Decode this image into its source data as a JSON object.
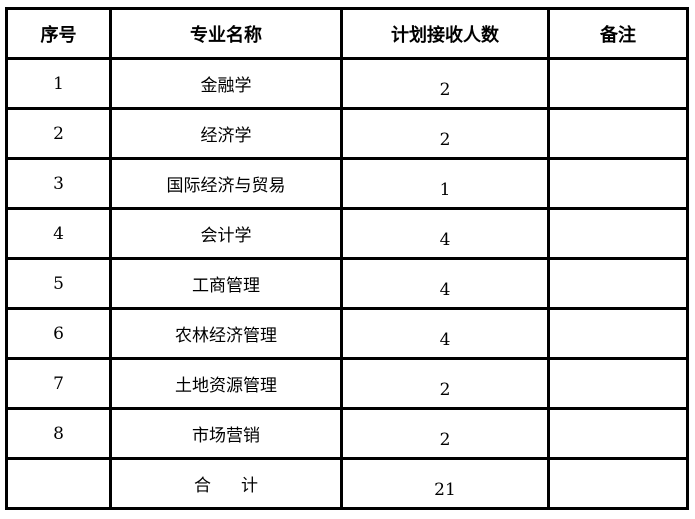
{
  "headers": [
    "序号",
    "专业名称",
    "计划接收人数",
    "备注"
  ],
  "rows": [
    {
      "no": "1",
      "major": "金融学",
      "plan": "2",
      "note": ""
    },
    {
      "no": "2",
      "major": "经济学",
      "plan": "2",
      "note": ""
    },
    {
      "no": "3",
      "major": "国际经济与贸易",
      "plan": "1",
      "note": ""
    },
    {
      "no": "4",
      "major": "会计学",
      "plan": "4",
      "note": ""
    },
    {
      "no": "5",
      "major": "工商管理",
      "plan": "4",
      "note": ""
    },
    {
      "no": "6",
      "major": "农林经济管理",
      "plan": "4",
      "note": ""
    },
    {
      "no": "7",
      "major": "土地资源管理",
      "plan": "2",
      "note": ""
    },
    {
      "no": "8",
      "major": "市场营销",
      "plan": "2",
      "note": ""
    }
  ],
  "total": {
    "label": "合计",
    "plan": "21"
  }
}
